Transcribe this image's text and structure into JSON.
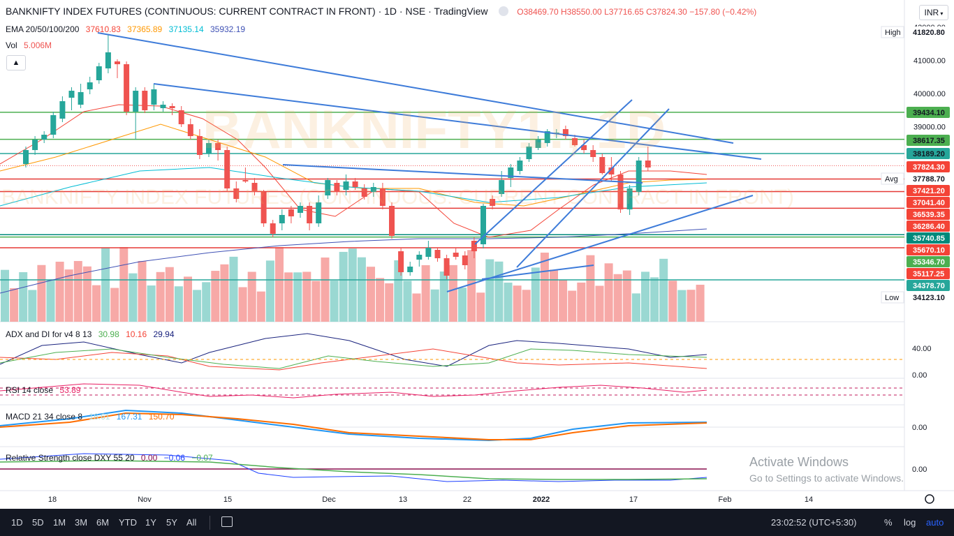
{
  "header": {
    "title": "BANKNIFTY INDEX FUTURES (CONTINUOUS: CURRENT CONTRACT IN FRONT) · 1D · NSE · TradingView",
    "o": "O38469.70",
    "h": "H38550.00",
    "l": "L37716.65",
    "c": "C37824.30",
    "chg": "−157.80 (−0.42%)"
  },
  "currency": "INR",
  "indicators": {
    "ema_label": "EMA 20/50/100/200",
    "ema_values": [
      "37610.83",
      "37365.89",
      "37135.14",
      "35932.19"
    ],
    "vol_label": "Vol",
    "vol_value": "5.006M",
    "adx_label": "ADX and DI for v4 8 13",
    "adx_values": [
      "30.98",
      "10.16",
      "29.94"
    ],
    "rsi_label": "RSI 14 close",
    "rsi_value": "53.89",
    "macd_label": "MACD 21 34 close 8",
    "macd_values": [
      "16.61",
      "167.31",
      "150.70"
    ],
    "rs_label": "Relative Strength close DXY 55 20",
    "rs_values": [
      "0.00",
      "−0.06",
      "−0.07"
    ]
  },
  "watermark": {
    "big": "BANKNIFTY1!, 1D",
    "long": "BANKNIFTY INDEX FUTURES (CONTINUOUS: CURRENT CONTRACT IN FRONT)"
  },
  "price_axis": [
    "42000.00",
    "41000.00",
    "40000.00",
    "39000.00"
  ],
  "price_tags": [
    {
      "text": "High",
      "value": "41820.80",
      "color": "#ffffff",
      "bg": "#ffffff",
      "fg": "#131722"
    },
    {
      "text": "",
      "value": "39434.10",
      "bg": "#4caf50",
      "fg": "#131722"
    },
    {
      "text": "",
      "value": "38617.35",
      "bg": "#4caf50",
      "fg": "#131722"
    },
    {
      "text": "",
      "value": "38189.20",
      "bg": "#26a69a",
      "fg": "#131722"
    },
    {
      "text": "",
      "value": "37824.30",
      "bg": "#f44336",
      "fg": "#ffffff"
    },
    {
      "text": "Avg",
      "value": "37788.70",
      "bg": "#ffffff",
      "fg": "#131722"
    },
    {
      "text": "",
      "value": "37421.20",
      "bg": "#f44336",
      "fg": "#ffffff"
    },
    {
      "text": "",
      "value": "37041.40",
      "bg": "#f44336",
      "fg": "#ffffff"
    },
    {
      "text": "",
      "value": "36539.35",
      "bg": "#f44336",
      "fg": "#ffffff"
    },
    {
      "text": "",
      "value": "36286.40",
      "bg": "#f44336",
      "fg": "#ffffff"
    },
    {
      "text": "",
      "value": "35740.85",
      "bg": "#00897b",
      "fg": "#ffffff"
    },
    {
      "text": "",
      "value": "35670.10",
      "bg": "#f44336",
      "fg": "#ffffff"
    },
    {
      "text": "",
      "value": "35346.70",
      "bg": "#4caf50",
      "fg": "#ffffff"
    },
    {
      "text": "",
      "value": "35117.25",
      "bg": "#f44336",
      "fg": "#ffffff"
    },
    {
      "text": "",
      "value": "34378.70",
      "bg": "#26a69a",
      "fg": "#ffffff"
    },
    {
      "text": "Low",
      "value": "34123.10",
      "bg": "#ffffff",
      "fg": "#131722"
    }
  ],
  "pane_axis": {
    "adx": [
      "40.00",
      "0.00"
    ],
    "macd": [
      "0.00"
    ],
    "rs": [
      "0.00"
    ]
  },
  "time_axis": [
    "18",
    "Nov",
    "15",
    "Dec",
    "13",
    "22",
    "2022",
    "17",
    "Feb",
    "14"
  ],
  "bottom_bar": {
    "timeframes": [
      "1D",
      "5D",
      "1M",
      "3M",
      "6M",
      "YTD",
      "1Y",
      "5Y",
      "All"
    ],
    "clock": "23:02:52 (UTC+5:30)",
    "pct": "%",
    "log": "log",
    "auto": "auto"
  },
  "activate_windows": {
    "title": "Activate Windows",
    "subtitle": "Go to Settings to activate Windows."
  },
  "colors": {
    "up": "#26a69a",
    "down": "#ef5350",
    "trend": "#3d7bd9",
    "green_line": "#4caf50",
    "red_line": "#e53935"
  }
}
